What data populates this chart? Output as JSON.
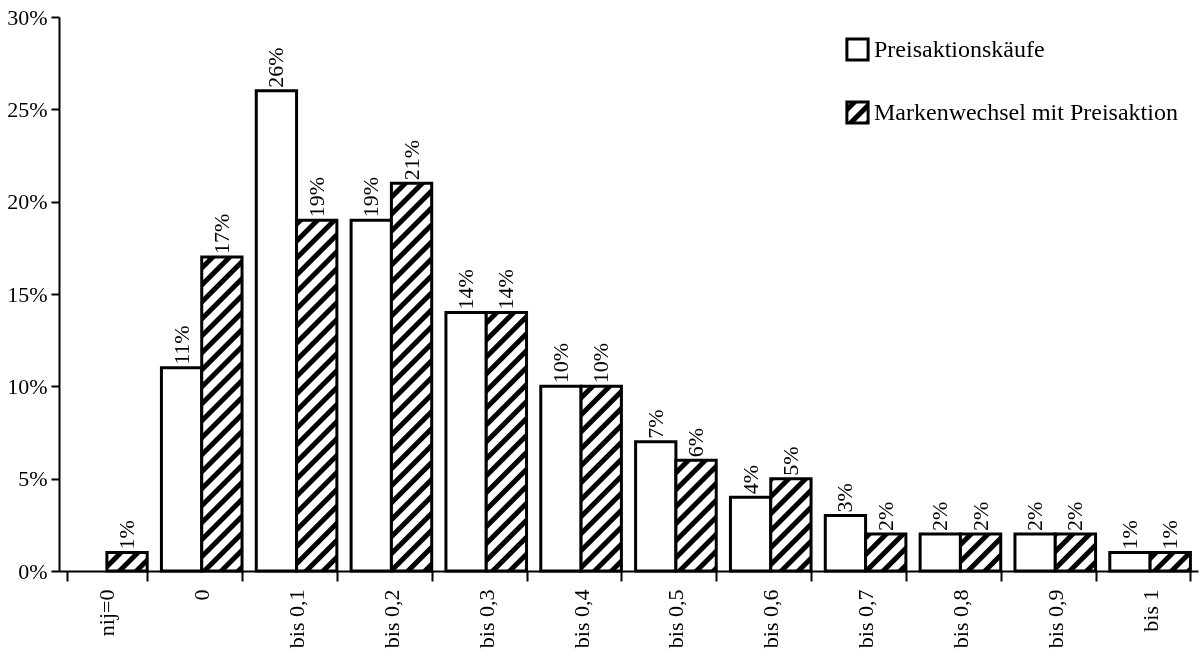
{
  "chart_data": {
    "type": "bar",
    "categories": [
      "nij=0",
      "0",
      "bis 0,1",
      "bis 0,2",
      "bis 0,3",
      "bis 0,4",
      "bis 0,5",
      "bis 0,6",
      "bis 0,7",
      "bis 0,8",
      "bis 0,9",
      "bis 1"
    ],
    "series": [
      {
        "name": "Preisaktionskäufe",
        "color": "#ffffff",
        "values": [
          null,
          11,
          26,
          19,
          14,
          10,
          7,
          4,
          3,
          2,
          2,
          1
        ],
        "value_labels": [
          null,
          "11%",
          "26%",
          "19%",
          "14%",
          "10%",
          "7%",
          "4%",
          "3%",
          "2%",
          "2%",
          "1%"
        ]
      },
      {
        "name": "Markenwechsel mit Preisaktion",
        "color": "#000000",
        "values": [
          1,
          17,
          19,
          21,
          14,
          10,
          6,
          5,
          2,
          2,
          2,
          1
        ],
        "value_labels": [
          "1%",
          "17%",
          "19%",
          "21%",
          "14%",
          "10%",
          "6%",
          "5%",
          "2%",
          "2%",
          "2%",
          "1%"
        ]
      }
    ],
    "ylim": [
      0,
      30
    ],
    "yticks": [
      {
        "value": 0,
        "label": "0%"
      },
      {
        "value": 5,
        "label": "5%"
      },
      {
        "value": 10,
        "label": "10%"
      },
      {
        "value": 15,
        "label": "15%"
      },
      {
        "value": 20,
        "label": "20%"
      },
      {
        "value": 25,
        "label": "25%"
      },
      {
        "value": 30,
        "label": "30%"
      }
    ],
    "grid": false,
    "legend": "top right"
  }
}
